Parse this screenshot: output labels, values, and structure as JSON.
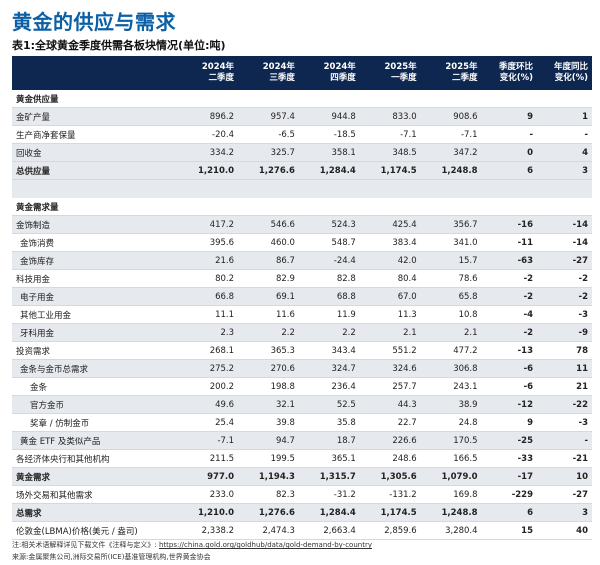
{
  "title": "黄金的供应与需求",
  "subtitle": "表1:全球黄金季度供需各板块情况(单位:吨)",
  "columns": [
    "",
    "2024年\n二季度",
    "2024年\n三季度",
    "2024年\n四季度",
    "2025年\n一季度",
    "2025年\n二季度",
    "季度环比\n变化(%)",
    "年度同比\n变化(%)"
  ],
  "rows": [
    {
      "type": "section",
      "label": "黄金供应量",
      "v": [
        "",
        "",
        "",
        "",
        "",
        "",
        ""
      ]
    },
    {
      "type": "row",
      "indent": 0,
      "label": "金矿产量",
      "v": [
        "896.2",
        "957.4",
        "944.8",
        "833.0",
        "908.6",
        "9",
        "1"
      ]
    },
    {
      "type": "row",
      "indent": 0,
      "label": "生产商净套保量",
      "v": [
        "-20.4",
        "-6.5",
        "-18.5",
        "-7.1",
        "-7.1",
        "-",
        "-"
      ]
    },
    {
      "type": "row",
      "indent": 0,
      "label": "回收金",
      "v": [
        "334.2",
        "325.7",
        "358.1",
        "348.5",
        "347.2",
        "0",
        "4"
      ]
    },
    {
      "type": "total",
      "label": "总供应量",
      "v": [
        "1,210.0",
        "1,276.6",
        "1,284.4",
        "1,174.5",
        "1,248.8",
        "6",
        "3"
      ]
    },
    {
      "type": "spacer",
      "label": "",
      "v": [
        "",
        "",
        "",
        "",
        "",
        "",
        ""
      ]
    },
    {
      "type": "section",
      "label": "黄金需求量",
      "v": [
        "",
        "",
        "",
        "",
        "",
        "",
        ""
      ]
    },
    {
      "type": "row",
      "indent": 0,
      "label": "金饰制造",
      "v": [
        "417.2",
        "546.6",
        "524.3",
        "425.4",
        "356.7",
        "-16",
        "-14"
      ]
    },
    {
      "type": "row",
      "indent": 1,
      "label": "金饰消费",
      "v": [
        "395.6",
        "460.0",
        "548.7",
        "383.4",
        "341.0",
        "-11",
        "-14"
      ]
    },
    {
      "type": "row",
      "indent": 1,
      "label": "金饰库存",
      "v": [
        "21.6",
        "86.7",
        "-24.4",
        "42.0",
        "15.7",
        "-63",
        "-27"
      ]
    },
    {
      "type": "row",
      "indent": 0,
      "label": "科技用金",
      "v": [
        "80.2",
        "82.9",
        "82.8",
        "80.4",
        "78.6",
        "-2",
        "-2"
      ]
    },
    {
      "type": "row",
      "indent": 1,
      "label": "电子用金",
      "v": [
        "66.8",
        "69.1",
        "68.8",
        "67.0",
        "65.8",
        "-2",
        "-2"
      ]
    },
    {
      "type": "row",
      "indent": 1,
      "label": "其他工业用金",
      "v": [
        "11.1",
        "11.6",
        "11.9",
        "11.3",
        "10.8",
        "-4",
        "-3"
      ]
    },
    {
      "type": "row",
      "indent": 1,
      "label": "牙科用金",
      "v": [
        "2.3",
        "2.2",
        "2.2",
        "2.1",
        "2.1",
        "-2",
        "-9"
      ]
    },
    {
      "type": "row",
      "indent": 0,
      "label": "投资需求",
      "v": [
        "268.1",
        "365.3",
        "343.4",
        "551.2",
        "477.2",
        "-13",
        "78"
      ]
    },
    {
      "type": "row",
      "indent": 1,
      "label": "金条与金币总需求",
      "v": [
        "275.2",
        "270.6",
        "324.7",
        "324.6",
        "306.8",
        "-6",
        "11"
      ]
    },
    {
      "type": "row",
      "indent": 2,
      "label": "金条",
      "v": [
        "200.2",
        "198.8",
        "236.4",
        "257.7",
        "243.1",
        "-6",
        "21"
      ]
    },
    {
      "type": "row",
      "indent": 2,
      "label": "官方金币",
      "v": [
        "49.6",
        "32.1",
        "52.5",
        "44.3",
        "38.9",
        "-12",
        "-22"
      ]
    },
    {
      "type": "row",
      "indent": 2,
      "label": "奖章 / 仿制金币",
      "v": [
        "25.4",
        "39.8",
        "35.8",
        "22.7",
        "24.8",
        "9",
        "-3"
      ]
    },
    {
      "type": "row",
      "indent": 1,
      "label": "黄金 ETF 及类似产品",
      "v": [
        "-7.1",
        "94.7",
        "18.7",
        "226.6",
        "170.5",
        "-25",
        "-"
      ]
    },
    {
      "type": "row",
      "indent": 0,
      "label": "各经济体央行和其他机构",
      "v": [
        "211.5",
        "199.5",
        "365.1",
        "248.6",
        "166.5",
        "-33",
        "-21"
      ]
    },
    {
      "type": "total",
      "label": "黄金需求",
      "v": [
        "977.0",
        "1,194.3",
        "1,315.7",
        "1,305.6",
        "1,079.0",
        "-17",
        "10"
      ]
    },
    {
      "type": "row",
      "indent": 0,
      "label": "场外交易和其他需求",
      "v": [
        "233.0",
        "82.3",
        "-31.2",
        "-131.2",
        "169.8",
        "-229",
        "-27"
      ]
    },
    {
      "type": "total",
      "label": "总需求",
      "v": [
        "1,210.0",
        "1,276.6",
        "1,284.4",
        "1,174.5",
        "1,248.8",
        "6",
        "3"
      ]
    },
    {
      "type": "row",
      "indent": 0,
      "label": "伦敦金(LBMA)价格(美元 / 盎司)",
      "v": [
        "2,338.2",
        "2,474.3",
        "2,663.4",
        "2,859.6",
        "3,280.4",
        "15",
        "40"
      ]
    }
  ],
  "footer": {
    "note_prefix": "注:相关术语解释详见下载文件《注释与定义》:",
    "note_link": "https://china.gold.org/goldhub/data/gold-demand-by-country",
    "source": "来源:金属聚焦公司,洲际交易所(ICE)基准管理机构,世界黄金协会"
  }
}
